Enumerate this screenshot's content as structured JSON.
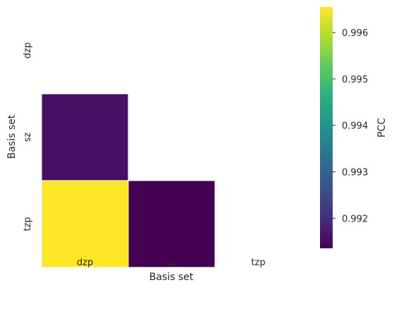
{
  "chart_data": {
    "type": "heatmap",
    "mask": "upper-triangle",
    "x_categories": [
      "dzp",
      "sz",
      "tzp"
    ],
    "y_categories": [
      "dzp",
      "sz",
      "tzp"
    ],
    "cells": [
      {
        "row": "sz",
        "col": "dzp",
        "value": 0.9916
      },
      {
        "row": "tzp",
        "col": "dzp",
        "value": 0.9966
      },
      {
        "row": "tzp",
        "col": "sz",
        "value": 0.99135
      }
    ],
    "xlabel": "Basis set",
    "ylabel": "Basis set",
    "colorbar": {
      "label": "PCC",
      "colormap": "viridis",
      "range": [
        0.99135,
        0.99655
      ],
      "ticks": [
        "0.992",
        "0.993",
        "0.994",
        "0.995",
        "0.996"
      ]
    }
  }
}
